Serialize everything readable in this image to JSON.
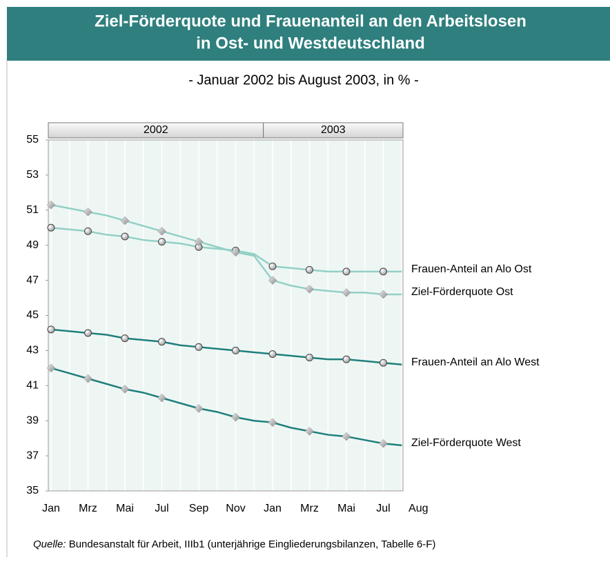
{
  "chart_data": {
    "type": "line",
    "title": [
      "Ziel-Förderquote und Frauenanteil an den Arbeitslosen",
      "in Ost- und Westdeutschland"
    ],
    "subtitle": "- Januar 2002 bis August 2003, in % -",
    "years": [
      "2002",
      "2003"
    ],
    "categories": [
      "Jan",
      null,
      "Mrz",
      null,
      "Mai",
      null,
      "Jul",
      null,
      "Sep",
      null,
      "Nov",
      null,
      "Jan",
      null,
      "Mrz",
      null,
      "Mai",
      null,
      "Jul",
      "Aug"
    ],
    "series": [
      {
        "name": "Frauen-Anteil an Alo Ost",
        "color": "#92d0c6",
        "marker": "circle",
        "values": [
          50.0,
          49.9,
          49.8,
          49.6,
          49.5,
          49.3,
          49.2,
          49.1,
          48.9,
          48.8,
          48.7,
          48.5,
          47.8,
          47.7,
          47.6,
          47.5,
          47.5,
          47.5,
          47.5,
          47.5
        ]
      },
      {
        "name": "Ziel-Förderquote Ost",
        "color": "#92d0c6",
        "marker": "diamond",
        "values": [
          51.3,
          51.1,
          50.9,
          50.7,
          50.4,
          50.1,
          49.8,
          49.5,
          49.2,
          48.9,
          48.6,
          48.4,
          47.0,
          46.7,
          46.5,
          46.4,
          46.3,
          46.3,
          46.2,
          46.2
        ]
      },
      {
        "name": "Frauen-Anteil an Alo West",
        "color": "#1f7f7b",
        "marker": "circle",
        "values": [
          44.2,
          44.1,
          44.0,
          43.9,
          43.7,
          43.6,
          43.5,
          43.3,
          43.2,
          43.1,
          43.0,
          42.9,
          42.8,
          42.7,
          42.6,
          42.5,
          42.5,
          42.4,
          42.3,
          42.2
        ]
      },
      {
        "name": "Ziel-Förderquote West",
        "color": "#1f7f7b",
        "marker": "diamond",
        "values": [
          42.0,
          41.7,
          41.4,
          41.1,
          40.8,
          40.6,
          40.3,
          40.0,
          39.7,
          39.5,
          39.2,
          39.0,
          38.9,
          38.6,
          38.4,
          38.2,
          38.1,
          37.9,
          37.7,
          37.6
        ]
      }
    ],
    "ylim": [
      35,
      55
    ],
    "yticks": [
      35,
      37,
      39,
      41,
      43,
      45,
      47,
      49,
      51,
      53,
      55
    ],
    "source_label": "Quelle:",
    "source": "Bundesanstalt für Arbeit, IIIb1 (unterjährige Eingliederungsbilanzen, Tabelle 6-F)"
  }
}
